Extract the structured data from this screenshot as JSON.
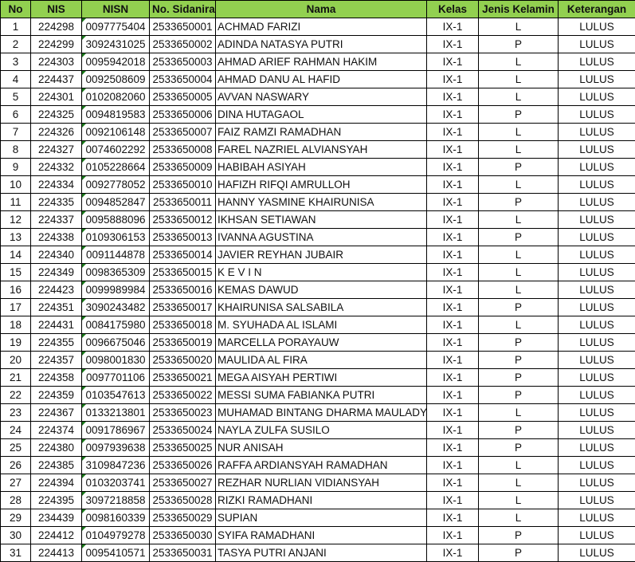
{
  "table": {
    "headers": [
      "No",
      "NIS",
      "NISN",
      "No. Sidanira",
      "Nama",
      "Kelas",
      "Jenis Kelamin",
      "Keterangan"
    ],
    "header_color": "#92D050",
    "rows": [
      [
        "1",
        "224298",
        "0097775404",
        "2533650001",
        "ACHMAD FARIZI",
        "IX-1",
        "L",
        "LULUS"
      ],
      [
        "2",
        "224299",
        "3092431025",
        "2533650002",
        "ADINDA NATASYA PUTRI",
        "IX-1",
        "P",
        "LULUS"
      ],
      [
        "3",
        "224303",
        "0095942018",
        "2533650003",
        "AHMAD ARIEF RAHMAN HAKIM",
        "IX-1",
        "L",
        "LULUS"
      ],
      [
        "4",
        "224437",
        "0092508609",
        "2533650004",
        "AHMAD DANU AL HAFID",
        "IX-1",
        "L",
        "LULUS"
      ],
      [
        "5",
        "224301",
        "0102082060",
        "2533650005",
        "AVVAN NASWARY",
        "IX-1",
        "L",
        "LULUS"
      ],
      [
        "6",
        "224325",
        "0094819583",
        "2533650006",
        "DINA HUTAGAOL",
        "IX-1",
        "P",
        "LULUS"
      ],
      [
        "7",
        "224326",
        "0092106148",
        "2533650007",
        "FAIZ RAMZI RAMADHAN",
        "IX-1",
        "L",
        "LULUS"
      ],
      [
        "8",
        "224327",
        "0074602292",
        "2533650008",
        "FAREL NAZRIEL ALVIANSYAH",
        "IX-1",
        "L",
        "LULUS"
      ],
      [
        "9",
        "224332",
        "0105228664",
        "2533650009",
        "HABIBAH ASIYAH",
        "IX-1",
        "P",
        "LULUS"
      ],
      [
        "10",
        "224334",
        "0092778052",
        "2533650010",
        "HAFIZH RIFQI AMRULLOH",
        "IX-1",
        "L",
        "LULUS"
      ],
      [
        "11",
        "224335",
        "0094852847",
        "2533650011",
        "HANNY YASMINE KHAIRUNISA",
        "IX-1",
        "P",
        "LULUS"
      ],
      [
        "12",
        "224337",
        "0095888096",
        "2533650012",
        "IKHSAN SETIAWAN",
        "IX-1",
        "L",
        "LULUS"
      ],
      [
        "13",
        "224338",
        "0109306153",
        "2533650013",
        "IVANNA AGUSTINA",
        "IX-1",
        "P",
        "LULUS"
      ],
      [
        "14",
        "224340",
        "0091144878",
        "2533650014",
        "JAVIER REYHAN JUBAIR",
        "IX-1",
        "L",
        "LULUS"
      ],
      [
        "15",
        "224349",
        "0098365309",
        "2533650015",
        "K E V I N",
        "IX-1",
        "L",
        "LULUS"
      ],
      [
        "16",
        "224423",
        "0099989984",
        "2533650016",
        "KEMAS DAWUD",
        "IX-1",
        "L",
        "LULUS"
      ],
      [
        "17",
        "224351",
        "3090243482",
        "2533650017",
        "KHAIRUNISA SALSABILA",
        "IX-1",
        "P",
        "LULUS"
      ],
      [
        "18",
        "224431",
        "0084175980",
        "2533650018",
        "M. SYUHADA AL ISLAMI",
        "IX-1",
        "L",
        "LULUS"
      ],
      [
        "19",
        "224355",
        "0096675046",
        "2533650019",
        "MARCELLA PORAYAUW",
        "IX-1",
        "P",
        "LULUS"
      ],
      [
        "20",
        "224357",
        "0098001830",
        "2533650020",
        "MAULIDA AL FIRA",
        "IX-1",
        "P",
        "LULUS"
      ],
      [
        "21",
        "224358",
        "0097701106",
        "2533650021",
        "MEGA AISYAH PERTIWI",
        "IX-1",
        "P",
        "LULUS"
      ],
      [
        "22",
        "224359",
        "0103547613",
        "2533650022",
        "MESSI SUMA FABIANKA PUTRI",
        "IX-1",
        "P",
        "LULUS"
      ],
      [
        "23",
        "224367",
        "0133213801",
        "2533650023",
        "MUHAMAD BINTANG DHARMA MAULADY",
        "IX-1",
        "L",
        "LULUS"
      ],
      [
        "24",
        "224374",
        "0091786967",
        "2533650024",
        "NAYLA ZULFA SUSILO",
        "IX-1",
        "P",
        "LULUS"
      ],
      [
        "25",
        "224380",
        "0097939638",
        "2533650025",
        "NUR ANISAH",
        "IX-1",
        "P",
        "LULUS"
      ],
      [
        "26",
        "224385",
        "3109847236",
        "2533650026",
        "RAFFA ARDIANSYAH RAMADHAN",
        "IX-1",
        "L",
        "LULUS"
      ],
      [
        "27",
        "224394",
        "0103203741",
        "2533650027",
        "REZHAR NURLIAN VIDIANSYAH",
        "IX-1",
        "L",
        "LULUS"
      ],
      [
        "28",
        "224395",
        "3097218858",
        "2533650028",
        "RIZKI RAMADHANI",
        "IX-1",
        "L",
        "LULUS"
      ],
      [
        "29",
        "234439",
        "0098160339",
        "2533650029",
        "SUPIAN",
        "IX-1",
        "L",
        "LULUS"
      ],
      [
        "30",
        "224412",
        "0104979278",
        "2533650030",
        "SYIFA RAMADHANI",
        "IX-1",
        "P",
        "LULUS"
      ],
      [
        "31",
        "224413",
        "0095410571",
        "2533650031",
        "TASYA PUTRI ANJANI",
        "IX-1",
        "P",
        "LULUS"
      ]
    ]
  }
}
